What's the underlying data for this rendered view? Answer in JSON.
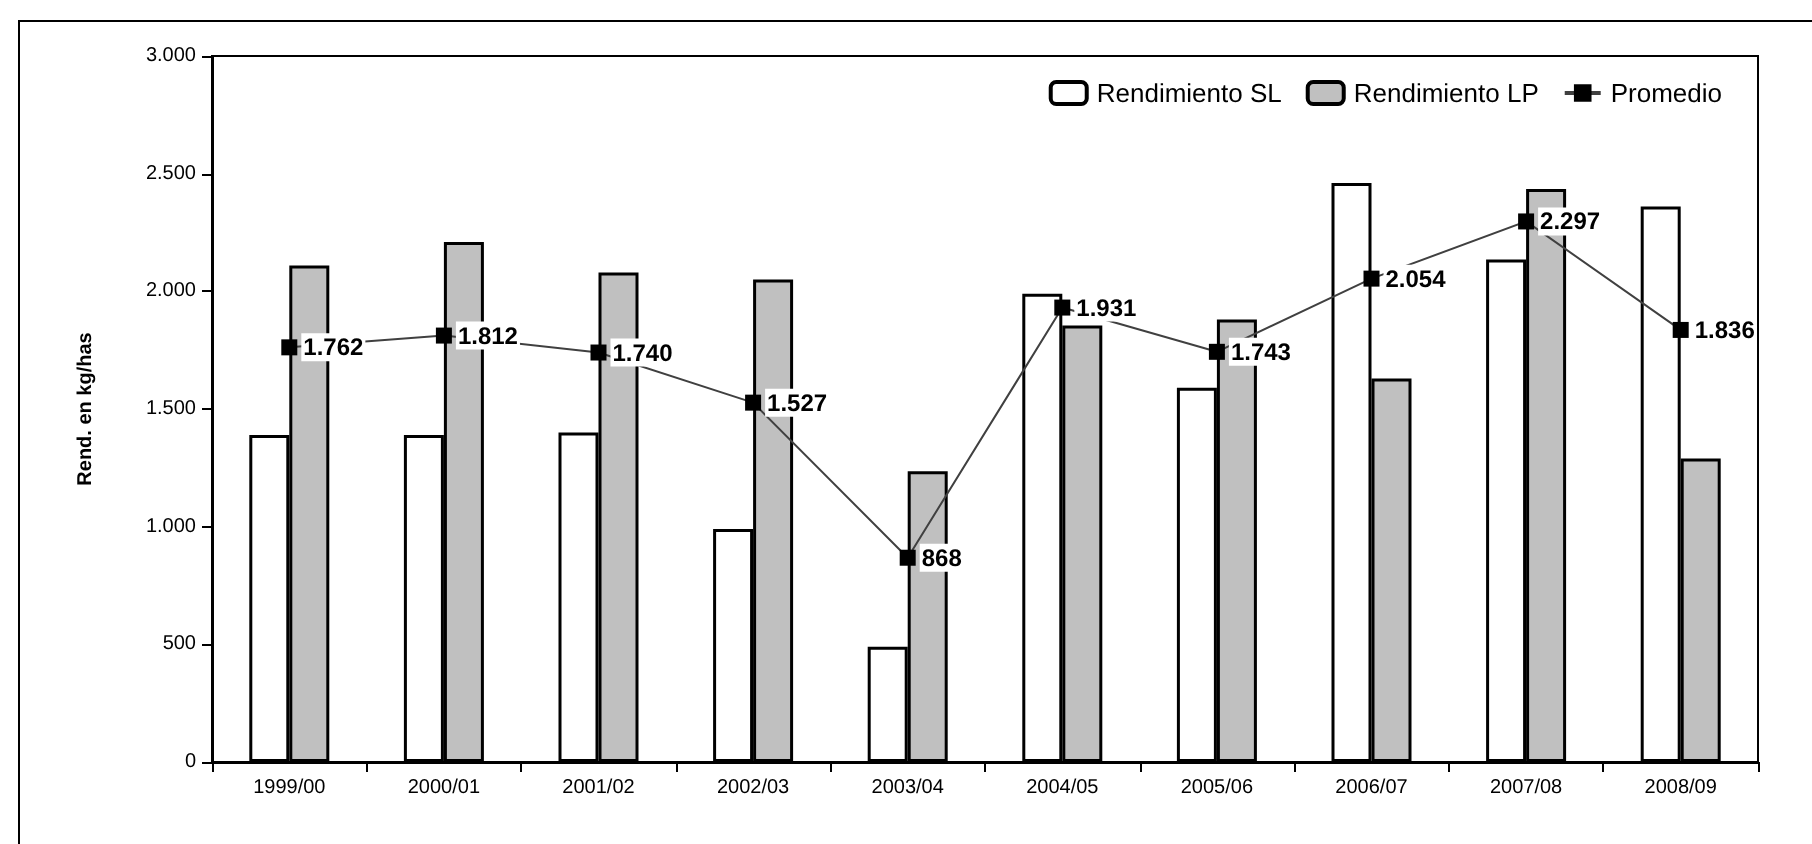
{
  "chart_data": {
    "type": "bar",
    "ylabel": "Rend. en kg/has",
    "categories": [
      "1999/00",
      "2000/01",
      "2001/02",
      "2002/03",
      "2003/04",
      "2004/05",
      "2005/06",
      "2006/07",
      "2007/08",
      "2008/09"
    ],
    "series": [
      {
        "name": "Rendimiento SL",
        "color": "#ffffff",
        "values": [
          1390,
          1390,
          1400,
          990,
          490,
          1990,
          1590,
          2460,
          2135,
          2360
        ]
      },
      {
        "name": "Rendimiento LP",
        "color": "#c0c0c0",
        "values": [
          2110,
          2210,
          2080,
          2050,
          1235,
          1855,
          1880,
          1630,
          2435,
          1290
        ]
      },
      {
        "name": "Promedio",
        "type": "line",
        "color": "#404040",
        "marker": "square",
        "values": [
          1762,
          1812,
          1740,
          1527,
          868,
          1931,
          1743,
          2054,
          2297,
          1836
        ],
        "value_labels": [
          "1.762",
          "1.812",
          "1.740",
          "1.527",
          "868",
          "1.931",
          "1.743",
          "2.054",
          "2.297",
          "1.836"
        ]
      }
    ],
    "ylim": [
      0,
      3000
    ],
    "yticks": [
      {
        "value": 0,
        "label": "0"
      },
      {
        "value": 500,
        "label": "500"
      },
      {
        "value": 1000,
        "label": "1.000"
      },
      {
        "value": 1500,
        "label": "1.500"
      },
      {
        "value": 2000,
        "label": "2.000"
      },
      {
        "value": 2500,
        "label": "2.500"
      },
      {
        "value": 3000,
        "label": "3.000"
      }
    ],
    "grid": false,
    "legend": "top right"
  }
}
